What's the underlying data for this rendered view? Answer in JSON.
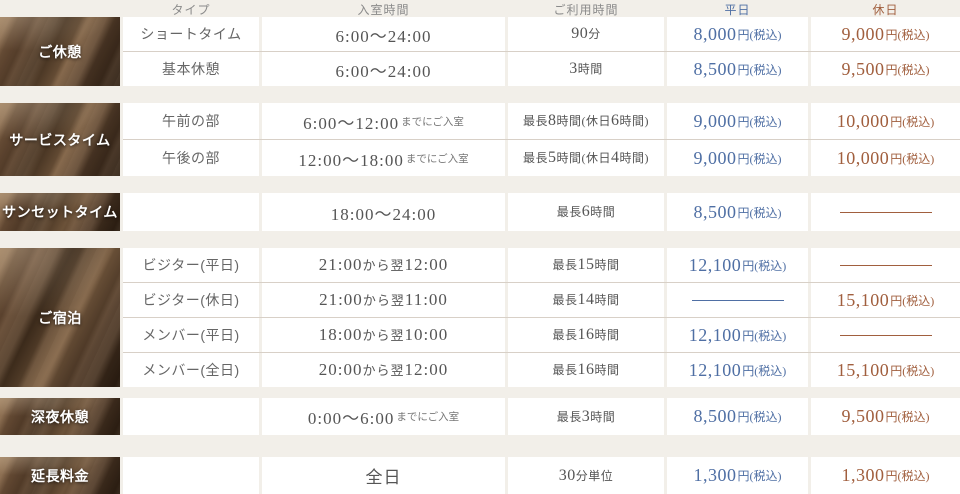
{
  "table": {
    "columns": [
      "タイプ",
      "入室時間",
      "ご利用時間",
      "平日",
      "休日"
    ],
    "price_suffix": "円(税込)",
    "colors": {
      "weekday": "#4f6fa4",
      "holiday": "#a15f3e"
    },
    "sections": [
      {
        "category": "ご休憩",
        "rows": [
          {
            "type": "ショートタイム",
            "entry": "6:00〜24:00",
            "usage": "90分",
            "weekday": "8,000",
            "holiday": "9,000"
          },
          {
            "type": "基本休憩",
            "entry": "6:00〜24:00",
            "usage": "3時間",
            "weekday": "8,500",
            "holiday": "9,500"
          }
        ]
      },
      {
        "category": "サービスタイム",
        "rows": [
          {
            "type": "午前の部",
            "entry": "6:00〜12:00",
            "entry_note": "までにご入室",
            "usage": "最長8時間(休日6時間)",
            "weekday": "9,000",
            "holiday": "10,000"
          },
          {
            "type": "午後の部",
            "entry": "12:00〜18:00",
            "entry_note": "までにご入室",
            "usage": "最長5時間(休日4時間)",
            "weekday": "9,000",
            "holiday": "10,000"
          }
        ]
      },
      {
        "category": "サンセットタイム",
        "rows": [
          {
            "type": "",
            "entry": "18:00〜24:00",
            "usage": "最長6時間",
            "weekday": "8,500",
            "holiday": null
          }
        ]
      },
      {
        "category": "ご宿泊",
        "rows": [
          {
            "type": "ビジター(平日)",
            "entry": "21:00から翌12:00",
            "usage": "最長15時間",
            "weekday": "12,100",
            "holiday": null
          },
          {
            "type": "ビジター(休日)",
            "entry": "21:00から翌11:00",
            "usage": "最長14時間",
            "weekday": null,
            "holiday": "15,100"
          },
          {
            "type": "メンバー(平日)",
            "entry": "18:00から翌10:00",
            "usage": "最長16時間",
            "weekday": "12,100",
            "holiday": null
          },
          {
            "type": "メンバー(全日)",
            "entry": "20:00から翌12:00",
            "usage": "最長16時間",
            "weekday": "12,100",
            "holiday": "15,100"
          }
        ]
      },
      {
        "category": "深夜休憩",
        "rows": [
          {
            "type": "",
            "entry": "0:00〜6:00",
            "entry_note": "までにご入室",
            "usage": "最長3時間",
            "weekday": "8,500",
            "holiday": "9,500"
          }
        ]
      },
      {
        "category": "延長料金",
        "rows": [
          {
            "type": "",
            "entry": "全日",
            "usage": "30分単位",
            "weekday": "1,300",
            "holiday": "1,300"
          }
        ]
      }
    ]
  }
}
